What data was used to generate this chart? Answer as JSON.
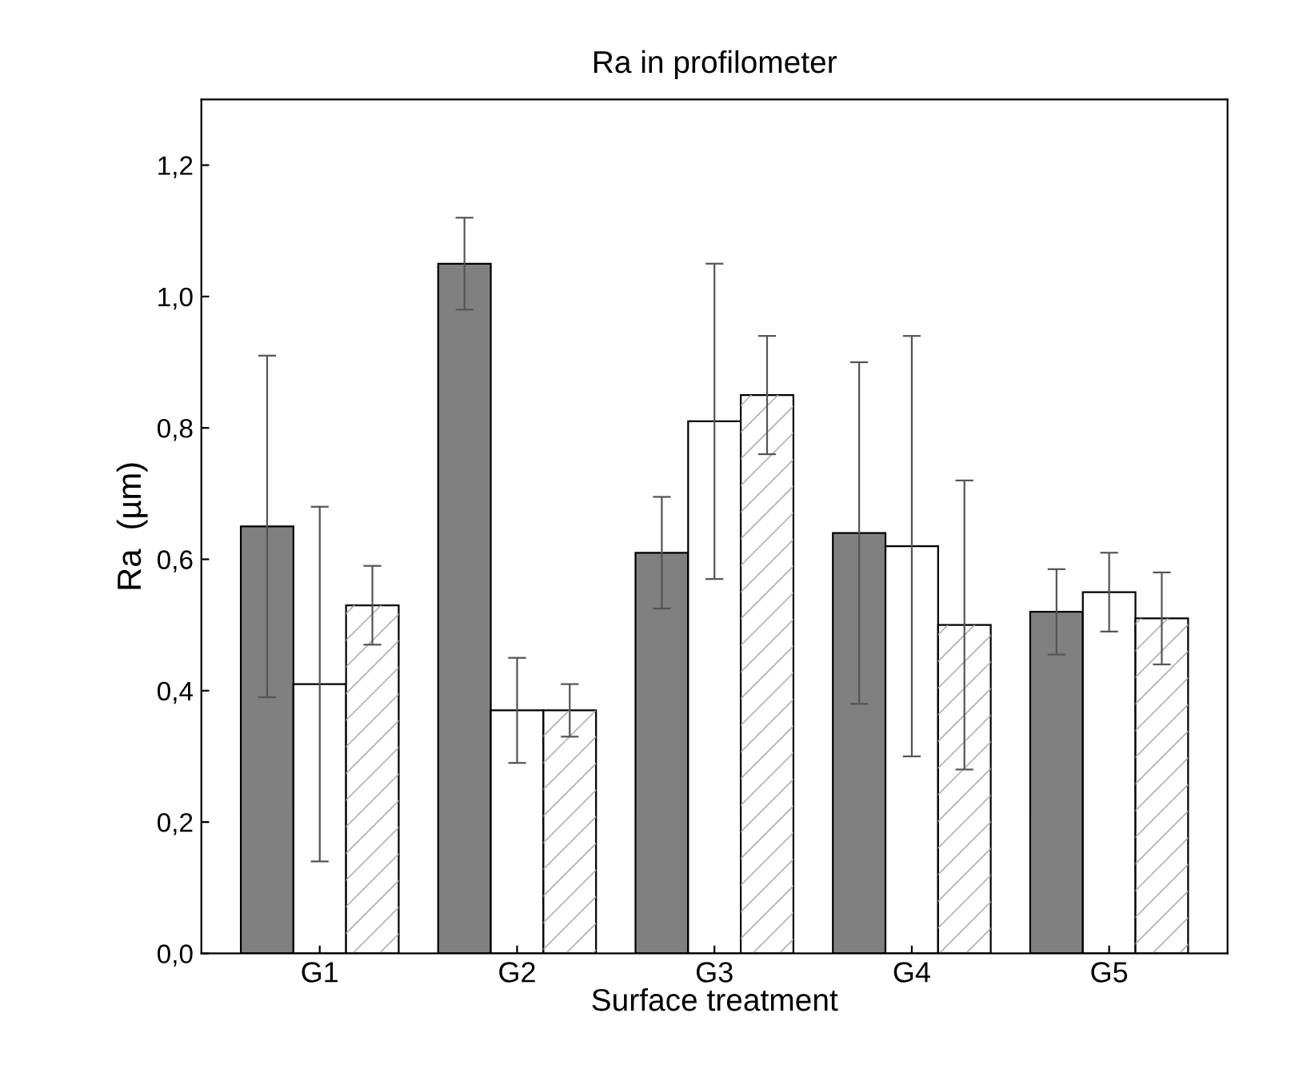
{
  "chart_data": {
    "type": "bar",
    "title": "Ra in profilometer",
    "xlabel": "Surface treatment",
    "ylabel": "Ra  (µm)",
    "categories": [
      "G1",
      "G2",
      "G3",
      "G4",
      "G5"
    ],
    "series": [
      {
        "color": "#808080",
        "values": [
          0.65,
          1.05,
          0.61,
          0.64,
          0.52
        ],
        "errors": [
          0.26,
          0.07,
          0.085,
          0.26,
          0.065
        ]
      },
      {
        "color": "#ffffff",
        "values": [
          0.41,
          0.37,
          0.81,
          0.62,
          0.55
        ],
        "errors": [
          0.27,
          0.08,
          0.24,
          0.32,
          0.06
        ]
      },
      {
        "color": "#ffffff",
        "values": [
          0.53,
          0.37,
          0.85,
          0.5,
          0.51
        ],
        "errors": [
          0.06,
          0.04,
          0.09,
          0.22,
          0.07
        ]
      }
    ],
    "ylim": [
      0,
      1.3
    ],
    "yticks": [
      {
        "value": 0,
        "label": "0,0"
      },
      {
        "value": 0.2,
        "label": "0,2"
      },
      {
        "value": 0.4,
        "label": "0,4"
      },
      {
        "value": 0.6,
        "label": "0,6"
      },
      {
        "value": 0.8,
        "label": "0,8"
      },
      {
        "value": 1.0,
        "label": "1,0"
      },
      {
        "value": 1.2,
        "label": "1,2"
      }
    ],
    "grid": false
  }
}
